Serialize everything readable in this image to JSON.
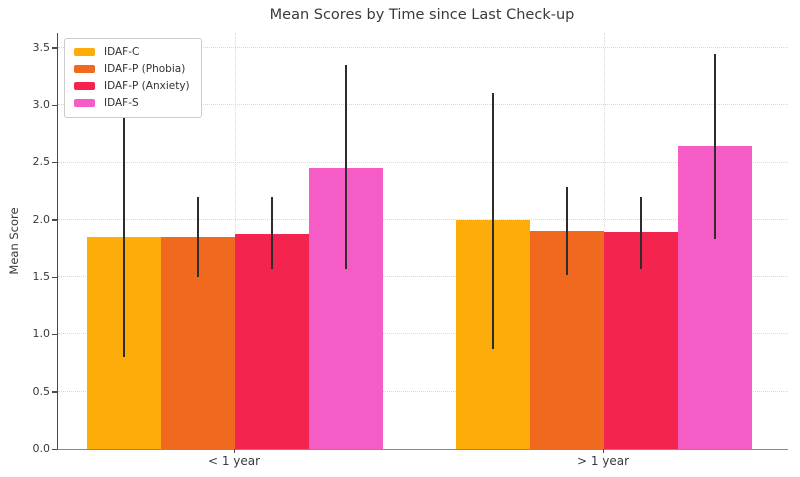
{
  "chart_data": {
    "type": "bar",
    "title": "Mean Scores by Time since Last Check-up",
    "ylabel": "Mean Score",
    "xlabel": "",
    "categories": [
      "< 1 year",
      "> 1 year"
    ],
    "ylim": [
      0,
      3.63
    ],
    "yticks": [
      0,
      0.5,
      1,
      1.5,
      2,
      2.5,
      3,
      3.5
    ],
    "ytick_labels": [
      "0.0",
      "0.5",
      "1.0",
      "1.5",
      "2.0",
      "2.5",
      "3.0",
      "3.5"
    ],
    "grid": {
      "style": "dotted",
      "horizontal_at_yticks": true,
      "vertical_at_category_centers": true
    },
    "legend_position": "upper left",
    "error_bar_color": "#2d2d2d",
    "series": [
      {
        "name": "IDAF-C",
        "color": "#FCAD09",
        "values": [
          1.85,
          2.0
        ],
        "errors": [
          [
            0.8,
            2.9
          ],
          [
            0.87,
            3.11
          ]
        ]
      },
      {
        "name": "IDAF-P (Phobia)",
        "color": "#F0691F",
        "values": [
          1.85,
          1.9
        ],
        "errors": [
          [
            1.5,
            2.2
          ],
          [
            1.52,
            2.29
          ]
        ]
      },
      {
        "name": "IDAF-P (Anxiety)",
        "color": "#F3254E",
        "values": [
          1.88,
          1.89
        ],
        "errors": [
          [
            1.57,
            2.2
          ],
          [
            1.57,
            2.2
          ]
        ]
      },
      {
        "name": "IDAF-S",
        "color": "#F55CC5",
        "values": [
          2.45,
          2.64
        ],
        "errors": [
          [
            1.57,
            3.35
          ],
          [
            1.83,
            3.45
          ]
        ]
      }
    ]
  }
}
